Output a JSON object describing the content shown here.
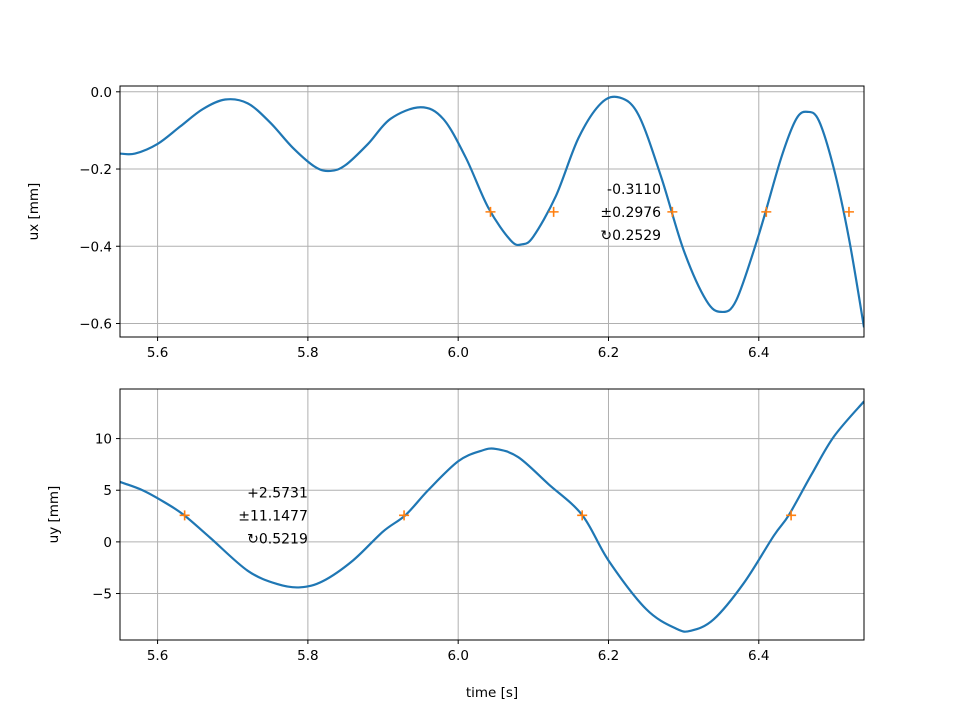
{
  "chart_data": [
    {
      "type": "line",
      "xlabel": "",
      "ylabel": "ux [mm]",
      "xlim": [
        5.55,
        6.54
      ],
      "ylim": [
        -0.635,
        0.015
      ],
      "xticks": [
        5.6,
        5.8,
        6.0,
        6.2,
        6.4
      ],
      "xtick_labels": [
        "5.6",
        "5.8",
        "6.0",
        "6.2",
        "6.4"
      ],
      "yticks": [
        0.0,
        -0.2,
        -0.4,
        -0.6
      ],
      "ytick_labels": [
        "0.0",
        "−0.2",
        "−0.4",
        "−0.6"
      ],
      "grid": true,
      "series": [
        {
          "color": "#1f77b4",
          "marker": "none",
          "x": [
            5.55,
            5.57,
            5.6,
            5.63,
            5.66,
            5.69,
            5.72,
            5.75,
            5.78,
            5.81,
            5.83,
            5.85,
            5.88,
            5.91,
            5.95,
            5.98,
            6.01,
            6.04,
            6.07,
            6.085,
            6.1,
            6.13,
            6.16,
            6.19,
            6.215,
            6.24,
            6.27,
            6.3,
            6.33,
            6.35,
            6.37,
            6.4,
            6.43,
            6.45,
            6.465,
            6.48,
            6.5,
            6.52,
            6.54
          ],
          "y": [
            -0.16,
            -0.16,
            -0.135,
            -0.09,
            -0.045,
            -0.02,
            -0.03,
            -0.08,
            -0.145,
            -0.195,
            -0.205,
            -0.19,
            -0.135,
            -0.07,
            -0.04,
            -0.07,
            -0.17,
            -0.3,
            -0.385,
            -0.395,
            -0.375,
            -0.27,
            -0.12,
            -0.03,
            -0.015,
            -0.06,
            -0.22,
            -0.41,
            -0.54,
            -0.57,
            -0.54,
            -0.37,
            -0.17,
            -0.07,
            -0.052,
            -0.075,
            -0.2,
            -0.38,
            -0.61
          ]
        },
        {
          "color": "#ff7f0e",
          "marker": "+",
          "linestyle": "none",
          "x": [
            6.043,
            6.127,
            6.285,
            6.41,
            6.52
          ],
          "y": [
            -0.311,
            -0.311,
            -0.311,
            -0.311,
            -0.311
          ]
        }
      ],
      "annotation": {
        "lines": [
          "-0.3110",
          "±0.2976",
          "↻0.2529"
        ],
        "x": 6.27,
        "y": -0.311,
        "align": "right"
      }
    },
    {
      "type": "line",
      "xlabel": "time [s]",
      "ylabel": "uy [mm]",
      "xlim": [
        5.55,
        6.54
      ],
      "ylim": [
        -9.5,
        14.8
      ],
      "xticks": [
        5.6,
        5.8,
        6.0,
        6.2,
        6.4
      ],
      "xtick_labels": [
        "5.6",
        "5.8",
        "6.0",
        "6.2",
        "6.4"
      ],
      "yticks": [
        10,
        5,
        0,
        -5
      ],
      "ytick_labels": [
        "10",
        "5",
        "0",
        "−5"
      ],
      "grid": true,
      "series": [
        {
          "color": "#1f77b4",
          "marker": "none",
          "x": [
            5.55,
            5.58,
            5.61,
            5.635,
            5.67,
            5.72,
            5.76,
            5.79,
            5.82,
            5.86,
            5.9,
            5.93,
            5.96,
            6.0,
            6.03,
            6.05,
            6.08,
            6.12,
            6.165,
            6.2,
            6.25,
            6.29,
            6.31,
            6.34,
            6.38,
            6.42,
            6.44,
            6.47,
            6.5,
            6.54
          ],
          "y": [
            5.8,
            5.0,
            3.8,
            2.6,
            0.4,
            -2.8,
            -4.1,
            -4.4,
            -3.8,
            -1.8,
            1.0,
            2.6,
            5.0,
            7.8,
            8.8,
            9.0,
            8.2,
            5.6,
            2.6,
            -1.8,
            -6.5,
            -8.4,
            -8.6,
            -7.5,
            -4.0,
            0.6,
            2.6,
            6.5,
            10.2,
            13.6
          ]
        },
        {
          "color": "#ff7f0e",
          "marker": "+",
          "linestyle": "none",
          "x": [
            5.636,
            5.928,
            6.165,
            6.443
          ],
          "y": [
            2.57,
            2.57,
            2.57,
            2.57
          ]
        }
      ],
      "annotation": {
        "lines": [
          "+2.5731",
          "±11.1477",
          "↻0.5219"
        ],
        "x": 5.8,
        "y": 2.57,
        "align": "right"
      }
    }
  ]
}
